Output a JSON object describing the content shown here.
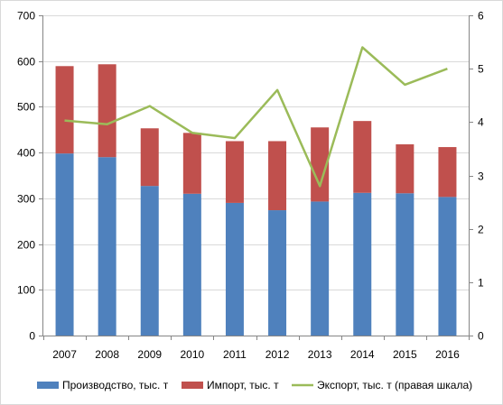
{
  "chart_data": {
    "type": "bar",
    "stacked": true,
    "title": "",
    "xlabel": "",
    "ylabel": "",
    "categories": [
      "2007",
      "2008",
      "2009",
      "2010",
      "2011",
      "2012",
      "2013",
      "2014",
      "2015",
      "2016"
    ],
    "series": [
      {
        "name": "Производство, тыс. т",
        "kind": "bar",
        "axis": "left",
        "color": "#4f81bd",
        "values": [
          398,
          390,
          327,
          310,
          290,
          274,
          293,
          312,
          311,
          303
        ]
      },
      {
        "name": "Импорт, тыс. т",
        "kind": "bar",
        "axis": "left",
        "color": "#c0504d",
        "values": [
          191,
          203,
          126,
          133,
          135,
          151,
          162,
          157,
          107,
          109
        ]
      },
      {
        "name": "Экспорт, тыс. т (правая шкала)",
        "kind": "line",
        "axis": "right",
        "color": "#9bbb59",
        "values": [
          4.03,
          3.96,
          4.3,
          3.8,
          3.7,
          4.6,
          2.8,
          5.4,
          4.7,
          5.0
        ]
      }
    ],
    "y_left": {
      "range": [
        0,
        700
      ],
      "ticks": [
        "0",
        "100",
        "200",
        "300",
        "400",
        "500",
        "600",
        "700"
      ]
    },
    "y_right": {
      "range": [
        0,
        6
      ],
      "ticks": [
        "0",
        "1",
        "2",
        "3",
        "4",
        "5",
        "6"
      ]
    },
    "grid": true,
    "legend_position": "bottom"
  }
}
